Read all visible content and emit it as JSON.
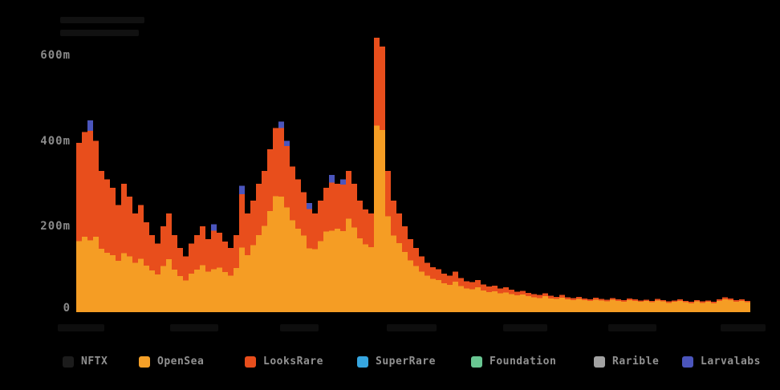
{
  "axes": {
    "y_ticks": [
      "600m",
      "400m",
      "200m",
      "0"
    ],
    "x_tick_labels_obscured": true,
    "x_tick_count": 7,
    "title_obscured": true
  },
  "legend": {
    "items": [
      {
        "label": "NFTX",
        "color": "#1c1c1c"
      },
      {
        "label": "OpenSea",
        "color": "#f5a028"
      },
      {
        "label": "LooksRare",
        "color": "#e84e1c"
      },
      {
        "label": "SuperRare",
        "color": "#36a6e0"
      },
      {
        "label": "Foundation",
        "color": "#69c692"
      },
      {
        "label": "Rarible",
        "color": "#a2a2a2"
      },
      {
        "label": "Larvalabs",
        "color": "#4b55bc"
      }
    ]
  },
  "chart_data": {
    "type": "stacked_bar",
    "title": "",
    "xlabel": "",
    "ylabel": "",
    "y_tick_labels": [
      "0",
      "200m",
      "400m",
      "600m"
    ],
    "y_tick_values": [
      0,
      200,
      400,
      600
    ],
    "ylim": [
      0,
      660
    ],
    "grid": false,
    "legend_position": "bottom",
    "n_bars": 120,
    "x_tick_labels_obscured": true,
    "other_series_negligible": [
      "NFTX",
      "SuperRare",
      "Foundation",
      "Rarible"
    ],
    "series": [
      {
        "name": "OpenSea",
        "color": "#f59d24",
        "values": [
          166,
          176,
          168,
          176,
          148,
          139,
          133,
          120,
          138,
          130,
          115,
          125,
          109,
          97,
          88,
          108,
          124,
          99,
          84,
          74,
          90,
          99,
          110,
          95,
          100,
          104,
          94,
          85,
          103,
          151,
          133,
          156,
          180,
          201,
          236,
          271,
          270,
          244,
          214,
          195,
          179,
          149,
          147,
          166,
          188,
          190,
          195,
          189,
          218,
          198,
          172,
          158,
          152,
          435,
          425,
          224,
          179,
          161,
          140,
          121,
          108,
          95,
          85,
          78,
          75,
          67,
          64,
          71,
          61,
          55,
          53,
          58,
          51,
          47,
          49,
          44,
          46,
          42,
          39,
          41,
          37,
          35,
          33,
          37,
          32,
          31,
          34,
          30,
          28,
          31,
          28,
          26,
          29,
          27,
          25,
          29,
          26,
          24,
          28,
          26,
          24,
          26,
          23,
          27,
          25,
          22,
          24,
          26,
          23,
          21,
          25,
          22,
          24,
          21,
          26,
          30,
          28,
          24,
          26,
          23
        ]
      },
      {
        "name": "LooksRare",
        "color": "#e84e1c",
        "values": [
          229,
          244,
          255,
          224,
          182,
          171,
          157,
          130,
          162,
          140,
          115,
          125,
          101,
          83,
          72,
          92,
          106,
          81,
          66,
          56,
          70,
          81,
          90,
          75,
          90,
          81,
          71,
          65,
          77,
          124,
          97,
          104,
          120,
          129,
          144,
          159,
          160,
          144,
          126,
          115,
          101,
          92,
          83,
          94,
          102,
          112,
          105,
          109,
          112,
          102,
          88,
          82,
          78,
          205,
          195,
          106,
          81,
          69,
          60,
          49,
          42,
          35,
          30,
          27,
          25,
          23,
          21,
          24,
          19,
          17,
          17,
          17,
          14,
          13,
          13,
          11,
          12,
          10,
          9,
          9,
          8,
          7,
          7,
          7,
          6,
          5,
          6,
          5,
          5,
          5,
          4,
          4,
          5,
          4,
          4,
          4,
          4,
          4,
          4,
          4,
          3,
          3,
          3,
          4,
          3,
          3,
          3,
          4,
          3,
          3,
          3,
          3,
          3,
          3,
          4,
          5,
          4,
          4,
          4,
          3
        ]
      },
      {
        "name": "Larvalabs",
        "color": "#4b55bc",
        "values": [
          0,
          0,
          25,
          0,
          0,
          0,
          0,
          0,
          0,
          0,
          0,
          0,
          0,
          0,
          0,
          0,
          0,
          0,
          0,
          0,
          0,
          0,
          0,
          0,
          15,
          0,
          0,
          0,
          0,
          20,
          0,
          0,
          0,
          0,
          0,
          0,
          15,
          12,
          0,
          0,
          0,
          14,
          0,
          0,
          0,
          18,
          0,
          12,
          0,
          0,
          0,
          0,
          0,
          0,
          0,
          0,
          0,
          0,
          0,
          0,
          0,
          0,
          0,
          0,
          0,
          0,
          0,
          0,
          0,
          0,
          0,
          0,
          0,
          0,
          0,
          0,
          0,
          0,
          0,
          0,
          0,
          0,
          0,
          0,
          0,
          0,
          0,
          0,
          0,
          0,
          0,
          0,
          0,
          0,
          0,
          0,
          0,
          0,
          0,
          0,
          0,
          0,
          0,
          0,
          0,
          0,
          0,
          0,
          0,
          0,
          0,
          0,
          0,
          0,
          0,
          0,
          0,
          0,
          0,
          0
        ]
      }
    ]
  }
}
